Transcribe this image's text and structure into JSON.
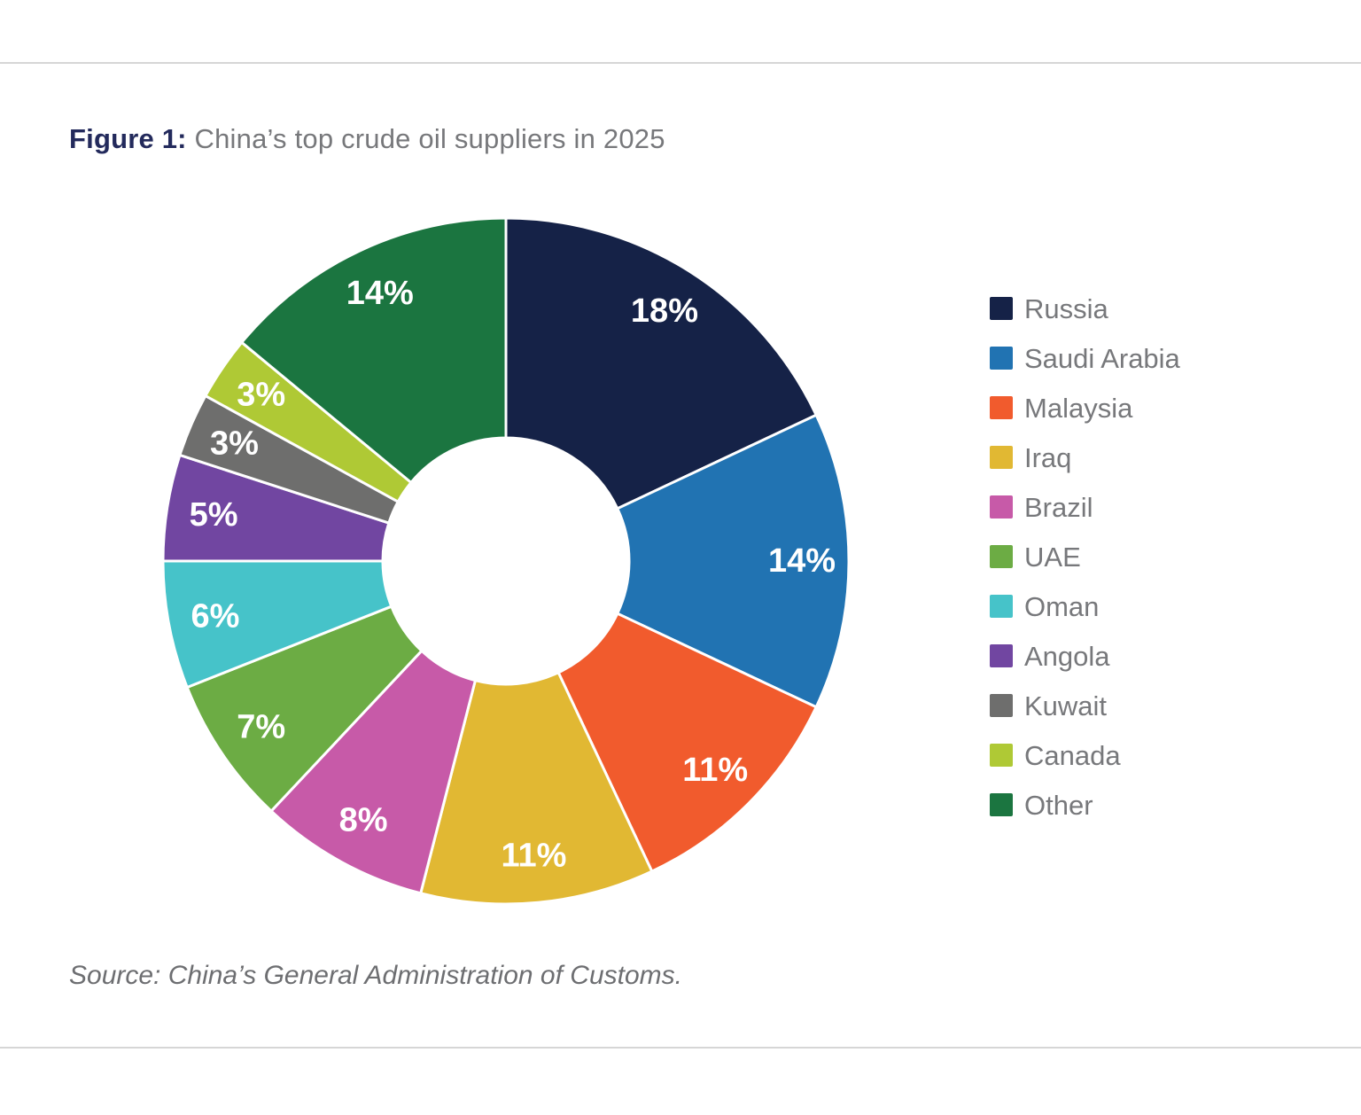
{
  "header": {
    "figure_label": "Figure 1:",
    "title": "China’s top crude oil suppliers in 2025"
  },
  "source": "Source: China’s General Administration of Customs.",
  "chart_data": {
    "type": "pie",
    "subtype": "donut",
    "title": "China’s top crude oil suppliers in 2025",
    "unit": "%",
    "start_angle_deg": 0,
    "direction": "clockwise",
    "inner_radius_ratio": 0.36,
    "grid": false,
    "legend_position": "right",
    "categories": [
      "Russia",
      "Saudi Arabia",
      "Malaysia",
      "Iraq",
      "Brazil",
      "UAE",
      "Oman",
      "Angola",
      "Kuwait",
      "Canada",
      "Other"
    ],
    "values": [
      18,
      14,
      11,
      11,
      8,
      7,
      6,
      5,
      3,
      3,
      14
    ],
    "slice_labels": [
      "18%",
      "14%",
      "11%",
      "11%",
      "8%",
      "7%",
      "6%",
      "5%",
      "3%",
      "3%",
      "14%"
    ],
    "colors": [
      "#152247",
      "#2173B2",
      "#F15B2D",
      "#E1B833",
      "#C75AA8",
      "#6CAC44",
      "#46C3C9",
      "#7146A1",
      "#6E6E6D",
      "#AFC935",
      "#1B7540"
    ]
  },
  "colors": {
    "figure_label_text": "#232a5c",
    "title_text": "#77787b",
    "legend_text": "#77787b",
    "source_text": "#6d6e71",
    "rule": "#d6d6d6",
    "slice_label_text": "#ffffff",
    "slice_divider": "#ffffff",
    "background": "#ffffff"
  }
}
